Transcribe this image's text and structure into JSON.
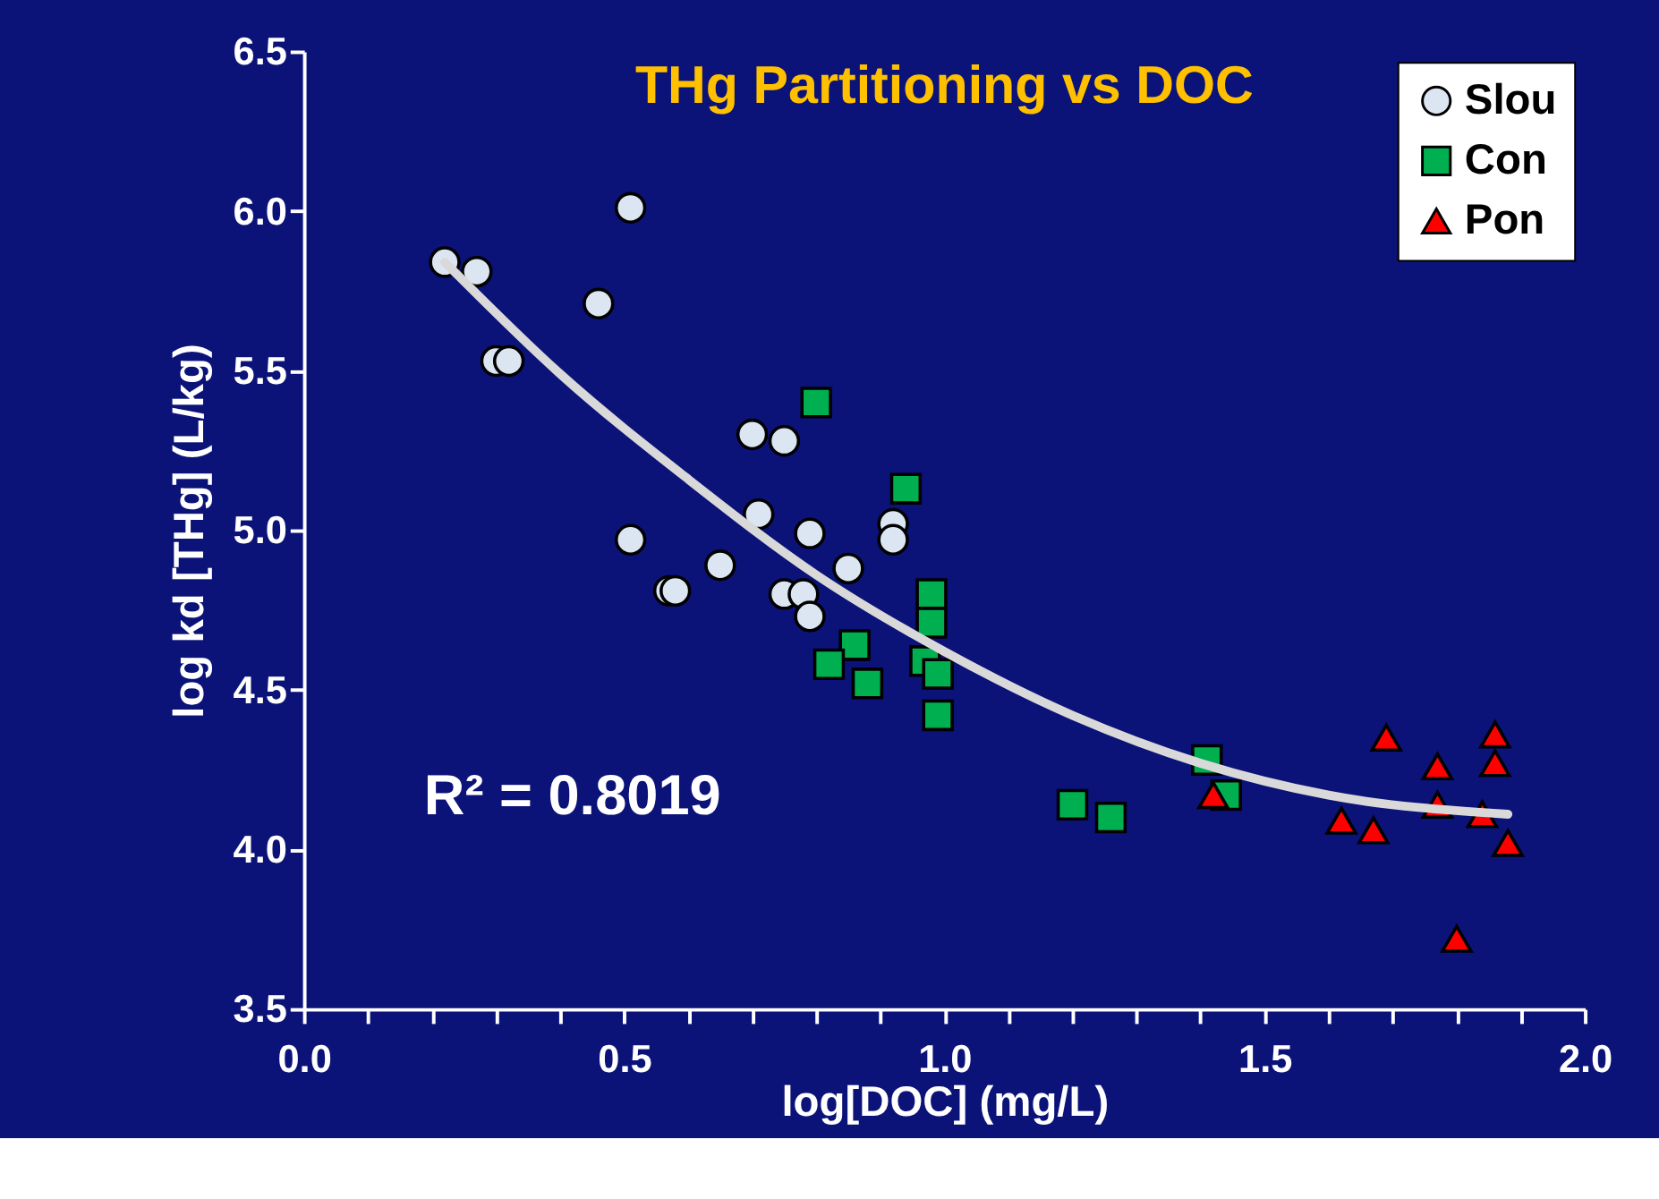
{
  "chart_data": {
    "type": "scatter",
    "title": "THg Partitioning vs DOC",
    "xlabel": "log[DOC] (mg/L)",
    "ylabel": "log kd [THg] (L/kg)",
    "annotations": [
      "R² = 0.8019"
    ],
    "xlim": [
      0,
      2
    ],
    "ylim": [
      3.5,
      6.5
    ],
    "xticks": [
      {
        "value": 0,
        "label": "0.0"
      },
      {
        "value": 0.1,
        "label": null
      },
      {
        "value": 0.2,
        "label": null
      },
      {
        "value": 0.3,
        "label": null
      },
      {
        "value": 0.4,
        "label": null
      },
      0.5,
      {
        "value": 0.6,
        "label": null
      },
      {
        "value": 0.7,
        "label": null
      },
      {
        "value": 0.8,
        "label": null
      },
      {
        "value": 0.9,
        "label": null
      },
      {
        "value": 1,
        "label": "1.0"
      },
      {
        "value": 1.1,
        "label": null
      },
      {
        "value": 1.2,
        "label": null
      },
      {
        "value": 1.3,
        "label": null
      },
      {
        "value": 1.4,
        "label": null
      },
      1.5,
      {
        "value": 1.6,
        "label": null
      },
      {
        "value": 1.7,
        "label": null
      },
      {
        "value": 1.8,
        "label": null
      },
      {
        "value": 1.9,
        "label": null
      },
      {
        "value": 2,
        "label": "2.0"
      }
    ],
    "yticks": [
      3.5,
      {
        "value": 4,
        "label": "4.0"
      },
      4.5,
      {
        "value": 5,
        "label": "5.0"
      },
      5.5,
      {
        "value": 6,
        "label": "6.0"
      },
      6.5
    ],
    "grid": false,
    "legend": "top right",
    "series": [
      {
        "name": "Slou",
        "type": "scatter",
        "marker": "circle",
        "color": "#dce6f2",
        "x": [
          0.22,
          0.27,
          0.3,
          0.32,
          0.51,
          0.46,
          0.7,
          0.75,
          0.71,
          0.51,
          0.79,
          0.65,
          0.57,
          0.58,
          0.75,
          0.78,
          0.79,
          0.85,
          0.92,
          0.92
        ],
        "values": [
          5.84,
          5.81,
          5.53,
          5.53,
          6.01,
          5.71,
          5.3,
          5.28,
          5.05,
          4.97,
          4.99,
          4.89,
          4.81,
          4.81,
          4.8,
          4.8,
          4.73,
          4.88,
          5.02,
          4.97
        ]
      },
      {
        "name": "Con",
        "type": "scatter",
        "marker": "square",
        "color": "#00b050",
        "x": [
          0.8,
          0.94,
          0.98,
          0.98,
          0.97,
          0.99,
          0.99,
          0.86,
          0.82,
          0.88,
          1.2,
          1.26,
          1.41,
          1.44
        ],
        "values": [
          5.4,
          5.13,
          4.8,
          4.71,
          4.59,
          4.55,
          4.42,
          4.64,
          4.58,
          4.52,
          4.14,
          4.1,
          4.28,
          4.17
        ]
      },
      {
        "name": "Pon",
        "type": "scatter",
        "marker": "triangle",
        "color": "#ff0000",
        "x": [
          1.69,
          1.86,
          1.77,
          1.86,
          1.42,
          1.62,
          1.67,
          1.77,
          1.84,
          1.88,
          1.8
        ],
        "values": [
          4.35,
          4.36,
          4.26,
          4.27,
          4.17,
          4.09,
          4.06,
          4.14,
          4.11,
          4.02,
          3.72
        ]
      },
      {
        "type": "line",
        "marker": "none",
        "line_style": "solid",
        "color": "#d9d9d9",
        "x": [
          0.22,
          0.4,
          0.6,
          0.8,
          1.0,
          1.2,
          1.4,
          1.6,
          1.88
        ],
        "values": [
          5.84,
          5.49,
          5.16,
          4.86,
          4.62,
          4.42,
          4.27,
          4.17,
          4.11
        ]
      }
    ]
  }
}
